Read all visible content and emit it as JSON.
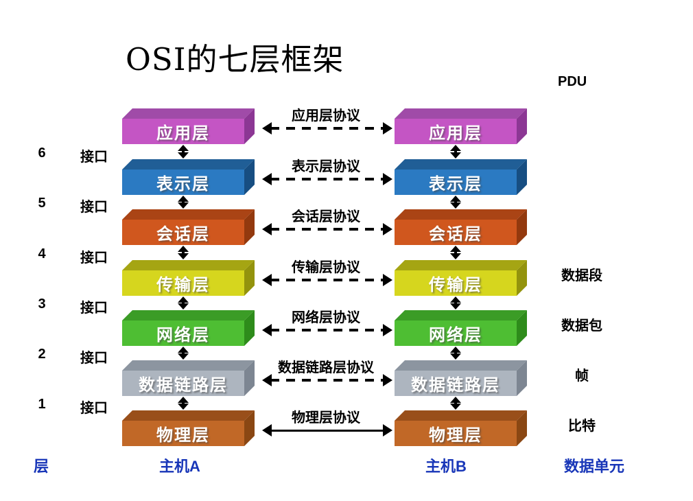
{
  "title": "OSI的七层框架",
  "pdu": {
    "heading": "PDU",
    "units": [
      {
        "label": "数据段",
        "layer_index": 3
      },
      {
        "label": "数据包",
        "layer_index": 4
      },
      {
        "label": "帧",
        "layer_index": 5
      },
      {
        "label": "比特",
        "layer_index": 6
      }
    ]
  },
  "layers": [
    {
      "key": "application",
      "name": "应用层",
      "protocol": "应用层协议",
      "arrow": "dashed",
      "front": "#C455C4",
      "top": "#A04BA8",
      "side": "#8C3794"
    },
    {
      "key": "presentation",
      "name": "表示层",
      "protocol": "表示层协议",
      "arrow": "dashed",
      "front": "#2B7AC2",
      "top": "#205E96",
      "side": "#174E82"
    },
    {
      "key": "session",
      "name": "会话层",
      "protocol": "会话层协议",
      "arrow": "dashed",
      "front": "#D0571E",
      "top": "#AA4415",
      "side": "#93390E"
    },
    {
      "key": "transport",
      "name": "传输层",
      "protocol": "传输层协议",
      "arrow": "dashed",
      "front": "#D6D61E",
      "top": "#A5A513",
      "side": "#93930D"
    },
    {
      "key": "network",
      "name": "网络层",
      "protocol": "网络层协议",
      "arrow": "dashed",
      "front": "#4EBE33",
      "top": "#3B9C26",
      "side": "#2E8C1B"
    },
    {
      "key": "data-link",
      "name": "数据链路层",
      "protocol": "数据链路层协议",
      "arrow": "dashed",
      "front": "#ADB5BF",
      "top": "#8C95A0",
      "side": "#7D8692"
    },
    {
      "key": "physical",
      "name": "物理层",
      "protocol": "物理层协议",
      "arrow": "solid",
      "front": "#C16827",
      "top": "#994F1A",
      "side": "#8A4713"
    }
  ],
  "interfaces": {
    "label": "接口",
    "numbers": [
      "6",
      "5",
      "4",
      "3",
      "2",
      "1"
    ]
  },
  "footer": {
    "layer_col": "层",
    "host_a": "主机A",
    "host_b": "主机B",
    "data_unit_col": "数据单元",
    "color": "#1836B8"
  }
}
